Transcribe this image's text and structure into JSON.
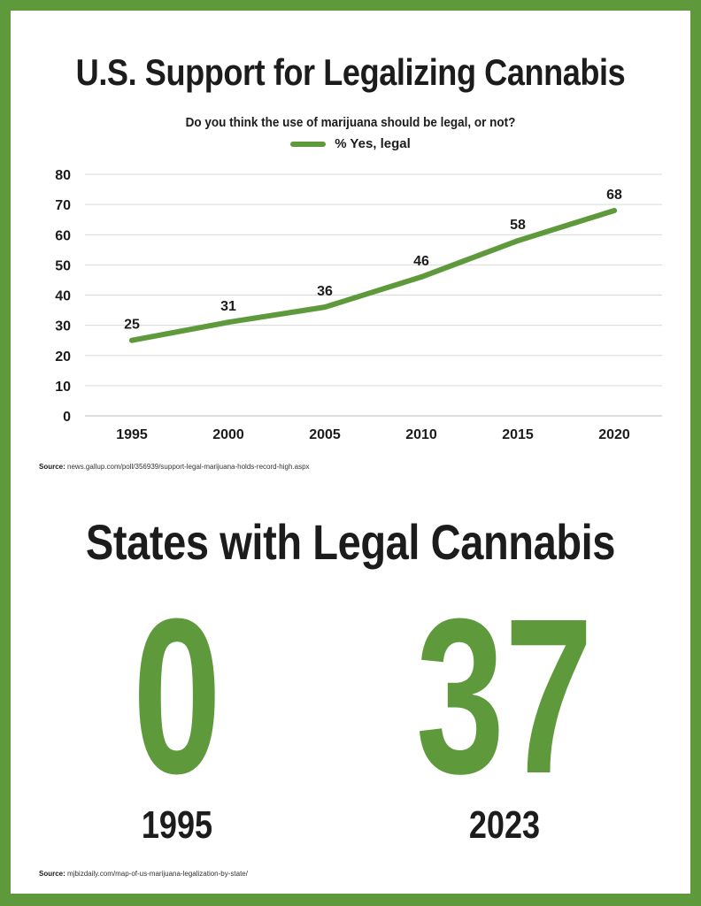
{
  "top": {
    "title": "U.S. Support for Legalizing Cannabis",
    "subtitle": "Do you think the use of marijuana should be legal, or not?",
    "source_label": "Source:",
    "source_text": "news.gallup.com/poll/356939/support-legal-marijuana-holds-record-high.aspx"
  },
  "chart_data": {
    "type": "line",
    "title": "U.S. Support for Legalizing Cannabis",
    "subtitle": "Do you think the use of marijuana should be legal, or not?",
    "categories": [
      "1995",
      "2000",
      "2005",
      "2010",
      "2015",
      "2020"
    ],
    "series": [
      {
        "name": "% Yes, legal",
        "values": [
          25,
          31,
          36,
          46,
          58,
          68
        ],
        "color": "#5e9a3c"
      }
    ],
    "yticks": [
      0,
      10,
      20,
      30,
      40,
      50,
      60,
      70,
      80
    ],
    "ylim": [
      0,
      80
    ],
    "xlabel": "",
    "ylabel": "",
    "grid": true,
    "legend": "top-center",
    "data_labels": true
  },
  "bottom": {
    "title": "States with Legal Cannabis",
    "stats": [
      {
        "value": "0",
        "year": "1995"
      },
      {
        "value": "37",
        "year": "2023"
      }
    ],
    "source_label": "Source:",
    "source_text": "mjbizdaily.com/map-of-us-marijuana-legalization-by-state/"
  },
  "colors": {
    "accent": "#5e9a3c",
    "text": "#1c1c1c",
    "grid": "#d9d9d9"
  }
}
